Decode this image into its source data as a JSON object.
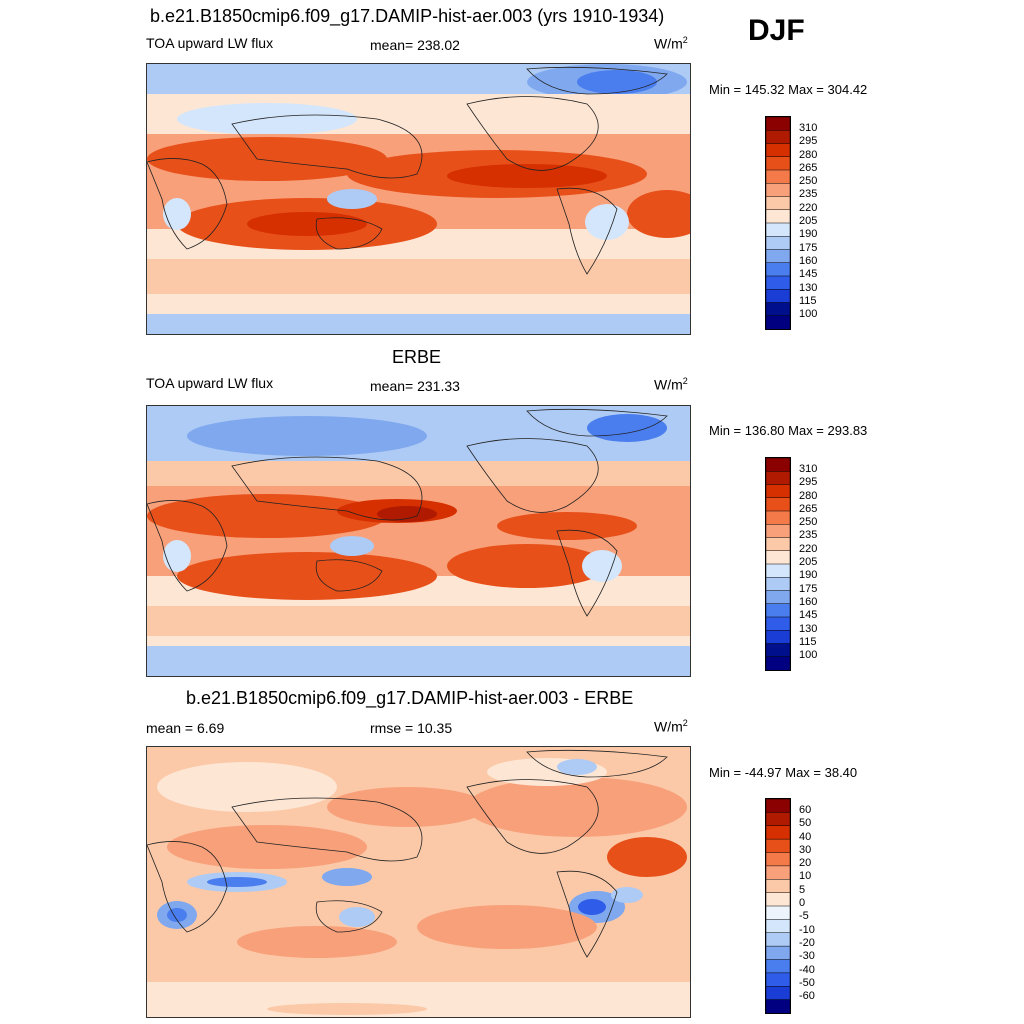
{
  "season": "DJF",
  "panels": [
    {
      "title": "b.e21.B1850cmip6.f09_g17.DAMIP-hist-aer.003 (yrs 1910-1934)",
      "left_label": "TOA upward LW flux",
      "center_label": "mean= 238.02",
      "units": "W/m",
      "units_sup": "2",
      "minmax": "Min = 145.32 Max = 304.42",
      "colorbar_ticks": [
        "310",
        "295",
        "280",
        "265",
        "250",
        "235",
        "220",
        "205",
        "190",
        "175",
        "160",
        "145",
        "130",
        "115",
        "100"
      ]
    },
    {
      "title": "ERBE",
      "left_label": "TOA upward LW flux",
      "center_label": "mean= 231.33",
      "units": "W/m",
      "units_sup": "2",
      "minmax": "Min = 136.80 Max = 293.83",
      "colorbar_ticks": [
        "310",
        "295",
        "280",
        "265",
        "250",
        "235",
        "220",
        "205",
        "190",
        "175",
        "160",
        "145",
        "130",
        "115",
        "100"
      ]
    },
    {
      "title": "b.e21.B1850cmip6.f09_g17.DAMIP-hist-aer.003 - ERBE",
      "left_label": "mean =   6.69",
      "center_label": "rmse =  10.35",
      "units": "W/m",
      "units_sup": "2",
      "minmax": "Min = -44.97 Max =  38.40",
      "colorbar_ticks": [
        "60",
        "50",
        "40",
        "30",
        "20",
        "10",
        "5",
        "0",
        "-5",
        "-10",
        "-20",
        "-30",
        "-40",
        "-50",
        "-60"
      ]
    }
  ],
  "colors": {
    "abs_scale": [
      "#8b0000",
      "#b01a00",
      "#d63000",
      "#e8501a",
      "#f47a4a",
      "#f8a07a",
      "#fbc9a8",
      "#fde6d4",
      "#d4e6fb",
      "#aecbf5",
      "#7fa8ef",
      "#4a7ded",
      "#2f5ce8",
      "#1a3dd6",
      "#00108c",
      "#000080"
    ],
    "diff_scale": [
      "#8b0000",
      "#b01a00",
      "#d63000",
      "#e8501a",
      "#f47a4a",
      "#f8a07a",
      "#fbc9a8",
      "#fde6d4",
      "#eef4fc",
      "#d4e6fb",
      "#aecbf5",
      "#7fa8ef",
      "#4a7ded",
      "#2f5ce8",
      "#1a3dd6",
      "#000080"
    ]
  }
}
